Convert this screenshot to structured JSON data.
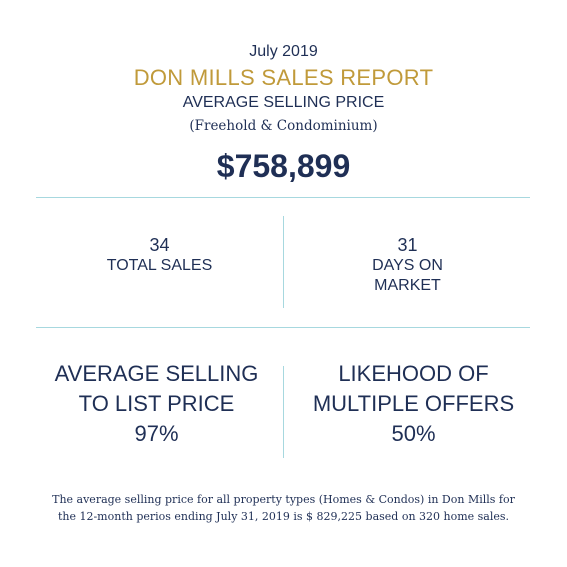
{
  "header": {
    "month": "July 2019",
    "title": "DON MILLS SALES REPORT",
    "subtitle": "AVERAGE SELLING PRICE",
    "note": "(Freehold & Condominium)",
    "price": "$758,899"
  },
  "stats": {
    "total_sales": {
      "value": "34",
      "label": "TOTAL SALES"
    },
    "days_on_market": {
      "value": "31",
      "label_line1": "DAYS ON",
      "label_line2": "MARKET"
    }
  },
  "ratios": {
    "selling_to_list": {
      "line1": "AVERAGE SELLING",
      "line2": "TO LIST PRICE",
      "value": "97%"
    },
    "multiple_offers": {
      "line1": "LIKEHOOD OF",
      "line2": "MULTIPLE OFFERS",
      "value": "50%"
    }
  },
  "footnote": {
    "line1": "The average selling price for all property types (Homes & Condos) in Don Mills for",
    "line2": "the 12-month perios ending July 31, 2019 is $ 829,225 based on 320 home sales."
  },
  "colors": {
    "navy": "#1f2f55",
    "gold": "#c09a3a",
    "divider": "#a7d8df"
  }
}
